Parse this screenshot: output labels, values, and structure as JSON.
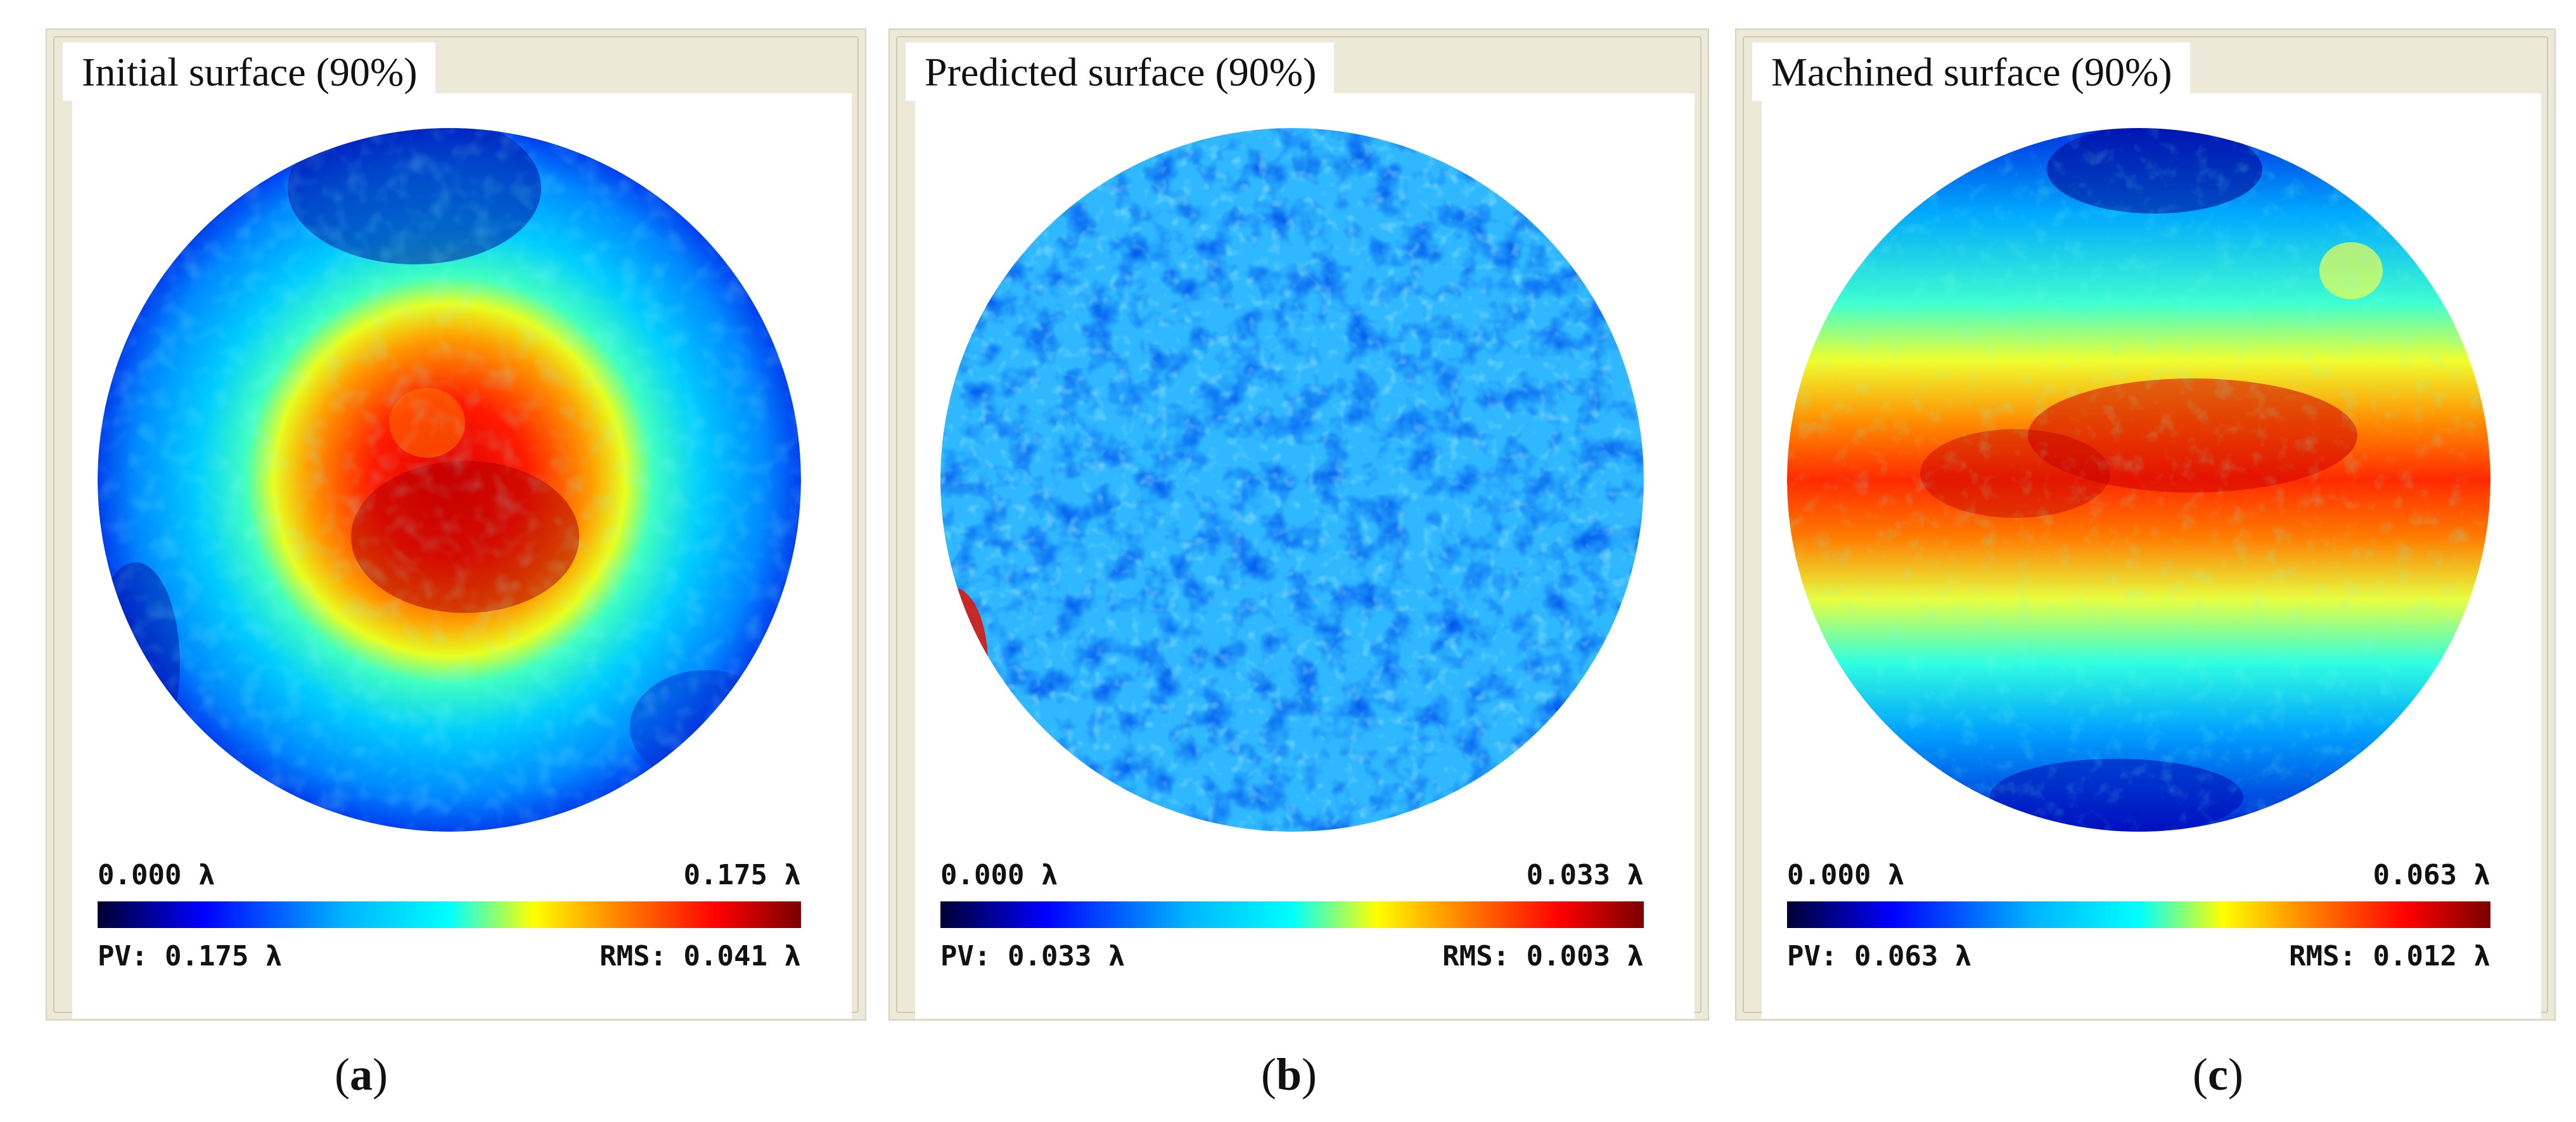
{
  "panels": [
    {
      "title": "Initial surface (90%)",
      "scale_min": "0.000 λ",
      "scale_max": "0.175 λ",
      "pv": "PV: 0.175 λ",
      "rms": "RMS: 0.041 λ",
      "caption_letter": "a",
      "pattern": "central-peak"
    },
    {
      "title": "Predicted surface (90%)",
      "scale_min": "0.000 λ",
      "scale_max": "0.033 λ",
      "pv": "PV: 0.033 λ",
      "rms": "RMS: 0.003 λ",
      "caption_letter": "b",
      "pattern": "random-mottled"
    },
    {
      "title": "Machined surface (90%)",
      "scale_min": "0.000 λ",
      "scale_max": "0.063 λ",
      "pv": "PV: 0.063 λ",
      "rms": "RMS: 0.012 λ",
      "caption_letter": "c",
      "pattern": "horizontal-band"
    }
  ],
  "colormap": [
    "#000033",
    "#0000ff",
    "#00b4ff",
    "#00ffff",
    "#ffff00",
    "#ff7a00",
    "#ff0000",
    "#7a0000"
  ]
}
